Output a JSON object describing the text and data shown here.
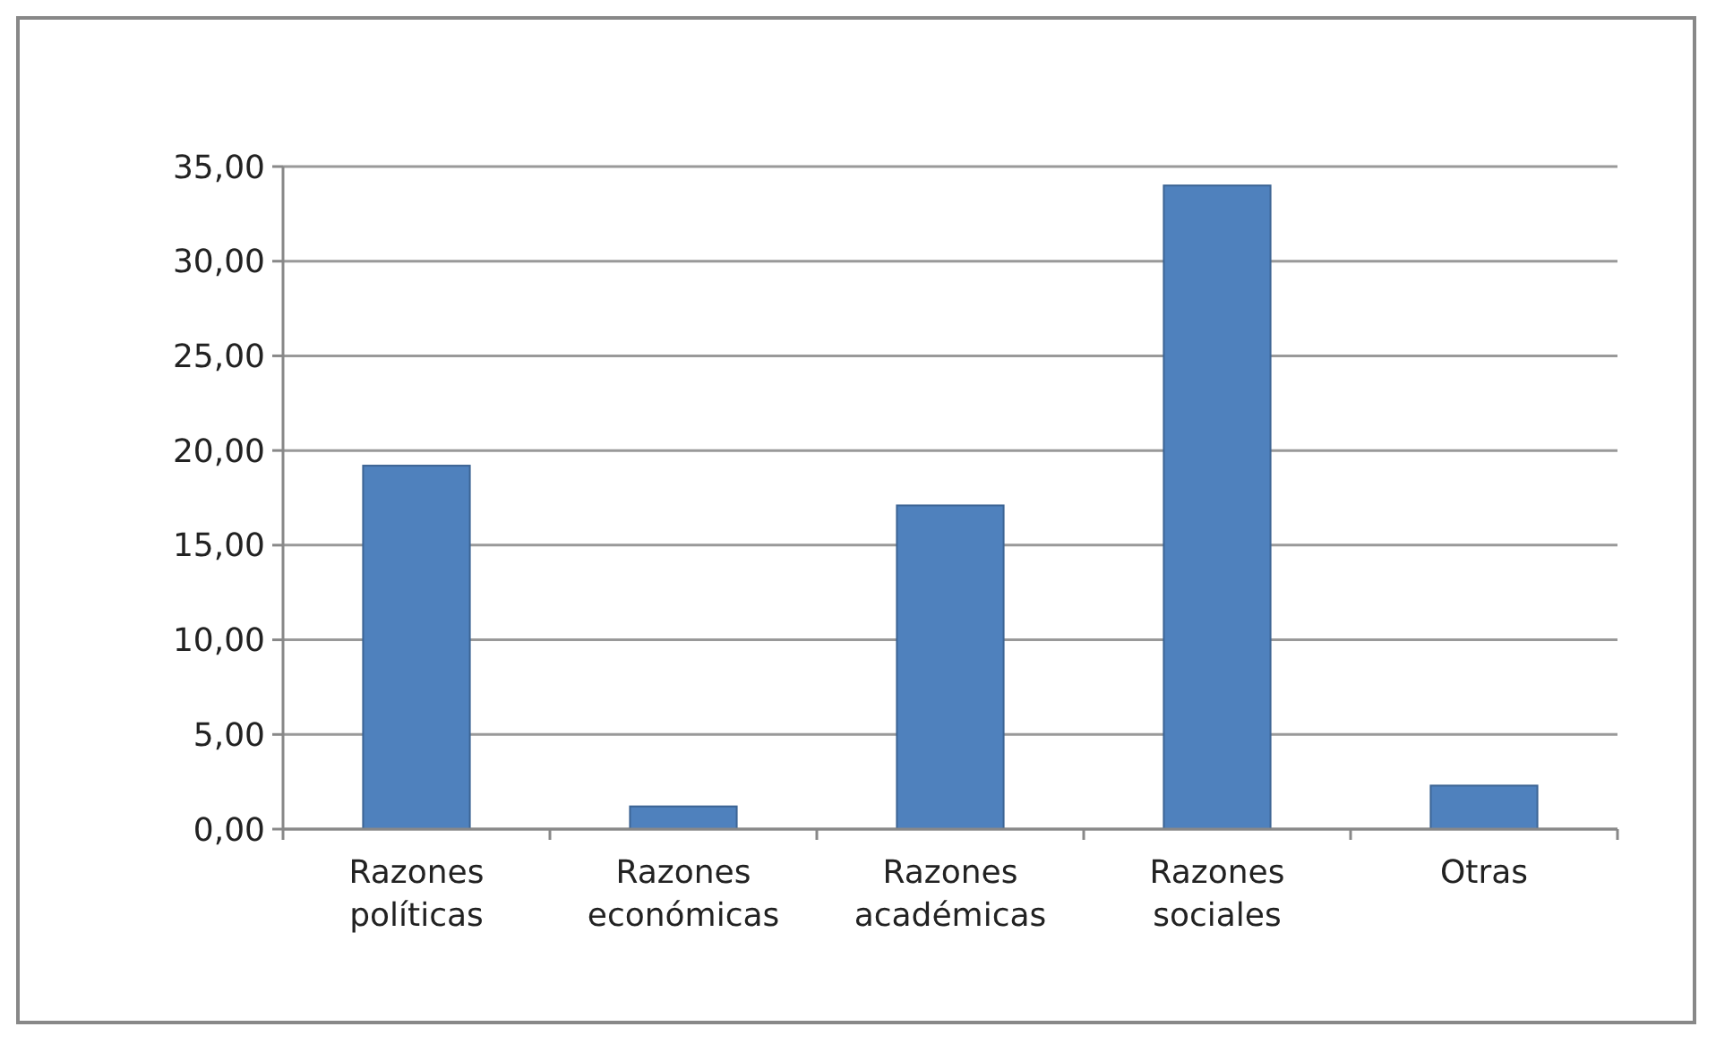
{
  "chart_data": {
    "type": "bar",
    "categories": [
      "Razones políticas",
      "Razones económicas",
      "Razones académicas",
      "Razones sociales",
      "Otras"
    ],
    "values": [
      19.2,
      1.2,
      17.1,
      34.0,
      2.3
    ],
    "color": "#4f81bd",
    "ylim": [
      0,
      35
    ],
    "yticks": [
      {
        "value": 0,
        "label": "0,00"
      },
      {
        "value": 5,
        "label": "5,00"
      },
      {
        "value": 10,
        "label": "10,00"
      },
      {
        "value": 15,
        "label": "15,00"
      },
      {
        "value": 20,
        "label": "20,00"
      },
      {
        "value": 25,
        "label": "25,00"
      },
      {
        "value": 30,
        "label": "30,00"
      },
      {
        "value": 35,
        "label": "35,00"
      }
    ],
    "grid": true
  }
}
